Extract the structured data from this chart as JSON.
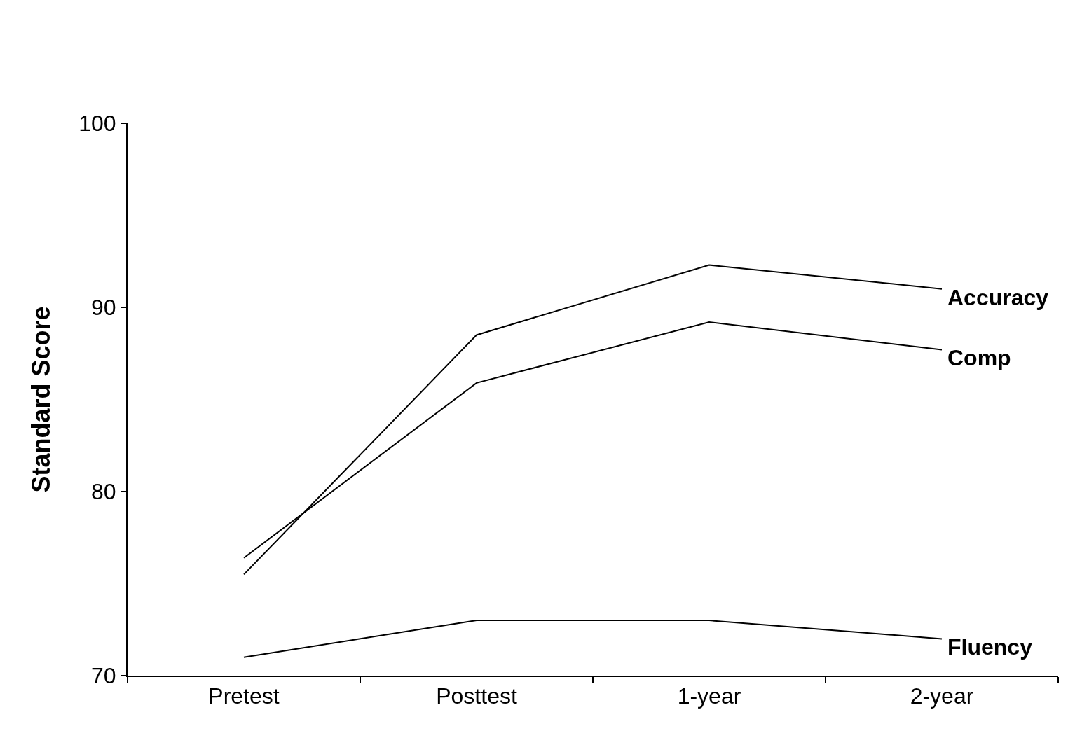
{
  "chart_data": {
    "type": "line",
    "ylabel": "Standard Score",
    "categories": [
      "Pretest",
      "Posttest",
      "1-year",
      "2-year"
    ],
    "series": [
      {
        "name": "Accuracy",
        "color": "#000000",
        "values": [
          75.5,
          88.5,
          92.3,
          91
        ]
      },
      {
        "name": "Comp",
        "color": "#000000",
        "values": [
          76.4,
          85.9,
          89.2,
          87.7
        ]
      },
      {
        "name": "Fluency",
        "color": "#000000",
        "values": [
          71,
          73,
          73,
          72
        ]
      }
    ],
    "ylim": [
      70,
      100
    ],
    "yticks": [
      70,
      80,
      90,
      100
    ],
    "grid": false,
    "legend": false,
    "marker": "none",
    "line_style": "solid"
  }
}
